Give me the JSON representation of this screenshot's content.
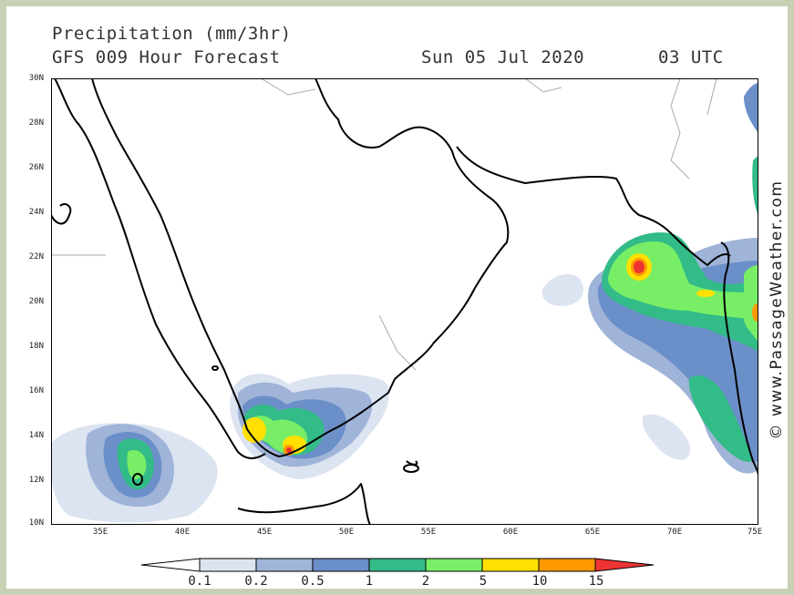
{
  "title": {
    "line1": "Precipitation (mm/3hr)",
    "line2": "GFS 009 Hour Forecast",
    "date": "Sun 05 Jul 2020",
    "time": "03 UTC"
  },
  "axes": {
    "lat_labels": [
      "30N",
      "28N",
      "26N",
      "24N",
      "22N",
      "20N",
      "18N",
      "16N",
      "14N",
      "12N",
      "10N"
    ],
    "lon_labels": [
      "35E",
      "40E",
      "45E",
      "50E",
      "55E",
      "60E",
      "65E",
      "70E",
      "75E"
    ]
  },
  "watermark": "© www.PassageWeather.com",
  "colorbar": {
    "labels": [
      "0.1",
      "0.2",
      "0.5",
      "1",
      "2",
      "5",
      "10",
      "15"
    ],
    "colors": [
      "#ffffff",
      "#dde4f1",
      "#9fb4d8",
      "#6b8fc8",
      "#33bb88",
      "#77ee66",
      "#ffe000",
      "#ff9900",
      "#ee3333"
    ]
  },
  "palette": {
    "land_outline": "#000000",
    "border": "#aaaaaa",
    "frame_bg": "#c9d1b5"
  },
  "chart_data": {
    "type": "heatmap",
    "lat_range": [
      10,
      30
    ],
    "lon_range": [
      32,
      75
    ],
    "variable": "Precipitation (mm/3hr)",
    "levels": [
      0.1,
      0.2,
      0.5,
      1,
      2,
      5,
      10,
      15
    ]
  }
}
